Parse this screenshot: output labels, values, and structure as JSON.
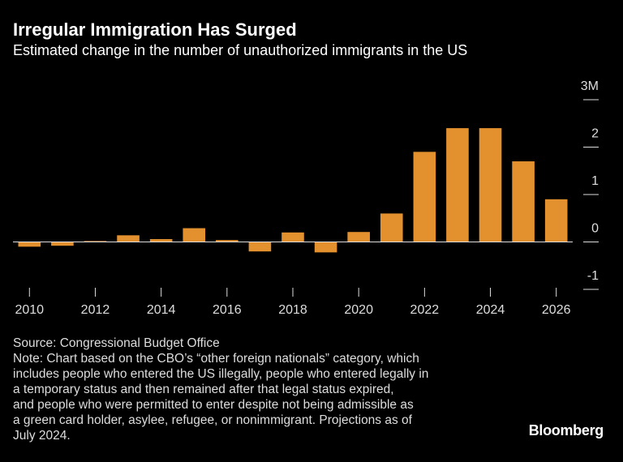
{
  "chart_data": {
    "type": "bar",
    "title": "Irregular Immigration Has Surged",
    "subtitle": "Estimated change in the number of unauthorized immigrants in the US",
    "x": [
      2010,
      2011,
      2012,
      2013,
      2014,
      2015,
      2016,
      2017,
      2018,
      2019,
      2020,
      2021,
      2022,
      2023,
      2024,
      2025,
      2026
    ],
    "values": [
      -0.1,
      -0.08,
      0.02,
      0.14,
      0.06,
      0.29,
      0.04,
      -0.2,
      0.2,
      -0.22,
      0.21,
      0.6,
      1.9,
      2.4,
      2.4,
      1.7,
      0.9
    ],
    "color": "#e3912f",
    "xlim": [
      2009.5,
      2026.5
    ],
    "xticks": [
      2010,
      2012,
      2014,
      2016,
      2018,
      2020,
      2022,
      2024,
      2026
    ],
    "ylim": [
      -1,
      3
    ],
    "yticks": [
      {
        "value": 3,
        "label": "3M"
      },
      2,
      1,
      0,
      -1
    ],
    "source": "Source: Congressional Budget Office",
    "note": [
      "Note: Chart based on the CBO’s “other foreign nationals” category, which",
      "includes people who entered the US illegally, people who entered legally in",
      "a temporary status and then remained after that legal status expired,",
      "and people who were permitted to enter despite not being admissible as",
      "a green card holder, asylee, refugee, or nonimmigrant. Projections as of",
      "July 2024."
    ],
    "brand": "Bloomberg"
  }
}
